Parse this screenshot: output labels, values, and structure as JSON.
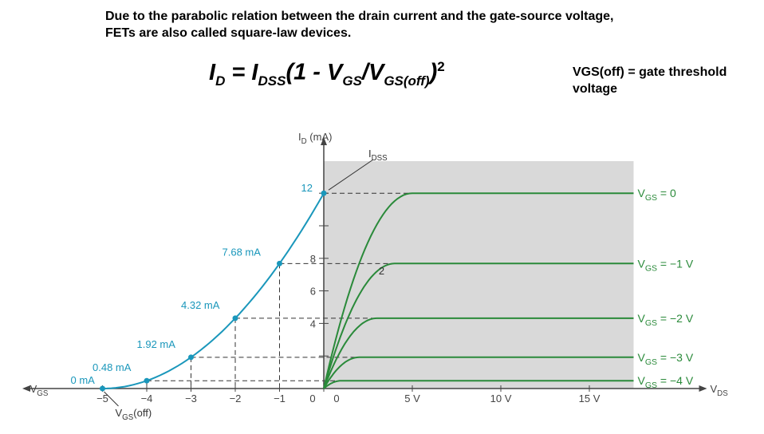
{
  "header": {
    "intro": "Due to the parabolic relation between the drain current and the gate-source voltage, FETs are also called square-law devices.",
    "formula": {
      "lhs": "I",
      "lhs_sub": "D",
      "eq": " = ",
      "i": "I",
      "i_sub": "DSS",
      "open": "(1 - ",
      "v1": "V",
      "v1_sub": "GS",
      "slash": "/",
      "v2": "V",
      "v2_sub": "GS(off)",
      "close": ")",
      "power": "2"
    },
    "note": "VGS(off) = gate threshold voltage"
  },
  "colors": {
    "transfer": "#1a97bb",
    "drain": "#2a8a3a",
    "shade": "#d9d9d9",
    "axis": "#444444"
  },
  "chart_data": [
    {
      "type": "line",
      "name": "transfer-characteristic",
      "xlabel": "−VGS",
      "ylabel": "ID (mA)",
      "x_ticks": [
        "−5",
        "−4",
        "−3",
        "−2",
        "−1",
        "0"
      ],
      "x_values": [
        -5,
        -4,
        -3,
        -2,
        -1,
        0
      ],
      "y_values": [
        0,
        0.48,
        1.92,
        4.32,
        7.68,
        12
      ],
      "point_labels": [
        "0 mA",
        "0.48 mA",
        "1.92 mA",
        "4.32 mA",
        "7.68 mA",
        "12"
      ],
      "annotations": {
        "idss": "IDSS",
        "vgsoff": "VGS(off)"
      },
      "xlim": [
        -5,
        0
      ],
      "ylim": [
        0,
        12
      ]
    },
    {
      "type": "line",
      "name": "drain-characteristics",
      "xlabel": "VDS",
      "ylabel": "ID (mA)",
      "x_ticks": [
        "0",
        "5 V",
        "10 V",
        "15 V"
      ],
      "x_tick_values": [
        0,
        5,
        10,
        15
      ],
      "y_ticks": [
        "4",
        "6",
        "8"
      ],
      "y_tick_values": [
        4,
        6,
        8
      ],
      "xlim": [
        0,
        17.5
      ],
      "ylim": [
        0,
        12
      ],
      "curve_marker": "2",
      "series": [
        {
          "name": "VGS = 0",
          "saturation": 12,
          "vp": 5
        },
        {
          "name": "VGS = −1 V",
          "saturation": 7.68,
          "vp": 4
        },
        {
          "name": "VGS = −2 V",
          "saturation": 4.32,
          "vp": 3
        },
        {
          "name": "VGS = −3 V",
          "saturation": 1.92,
          "vp": 2
        },
        {
          "name": "VGS = −4 V",
          "saturation": 0.48,
          "vp": 1
        }
      ]
    }
  ]
}
